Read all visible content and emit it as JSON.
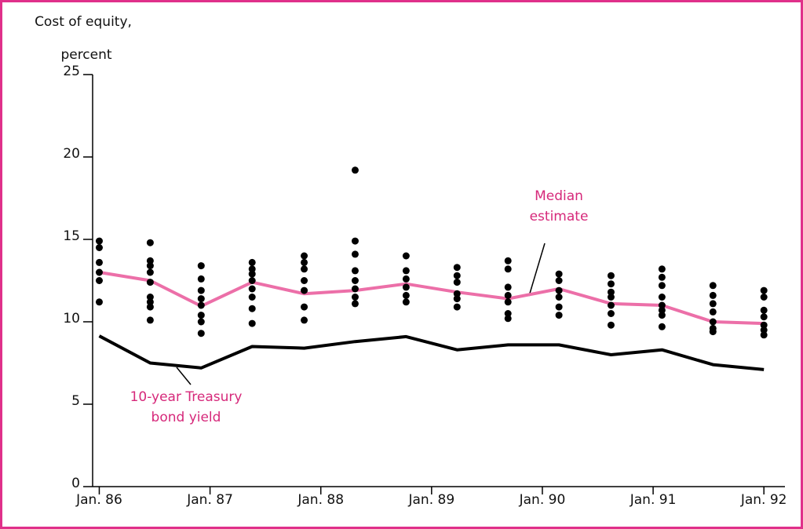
{
  "chart_data": {
    "type": "line",
    "ylabel": [
      "Cost of equity,",
      "percent"
    ],
    "xlim": [
      1985.94,
      1992.19
    ],
    "ylim": [
      0,
      25
    ],
    "xticks": [
      {
        "value": 1986,
        "label": "Jan. 86"
      },
      {
        "value": 1987,
        "label": "Jan. 87"
      },
      {
        "value": 1988,
        "label": "Jan. 88"
      },
      {
        "value": 1989,
        "label": "Jan. 89"
      },
      {
        "value": 1990,
        "label": "Jan. 90"
      },
      {
        "value": 1991,
        "label": "Jan. 91"
      },
      {
        "value": 1992,
        "label": "Jan. 92"
      }
    ],
    "yticks": [
      0,
      5,
      10,
      15,
      20,
      25
    ],
    "x": [
      1986,
      1986.46,
      1986.92,
      1987.38,
      1987.85,
      1988.31,
      1988.77,
      1989.23,
      1989.69,
      1990.15,
      1990.62,
      1991.08,
      1991.54,
      1992
    ],
    "series": [
      {
        "color": "#ec6fa8",
        "values": [
          13.0,
          12.5,
          10.95,
          12.4,
          11.7,
          11.9,
          12.3,
          11.8,
          11.4,
          12.0,
          11.1,
          11.0,
          10.0,
          9.9
        ]
      },
      {
        "color": "#000000",
        "values": [
          9.14,
          7.5,
          7.2,
          8.5,
          8.4,
          8.8,
          9.1,
          8.3,
          8.6,
          8.6,
          8.0,
          8.3,
          7.4,
          7.1
        ]
      }
    ],
    "estimates": {
      "color": "#000000",
      "values": [
        [
          14.9,
          14.5,
          13.6,
          13.0,
          12.5,
          11.2
        ],
        [
          14.8,
          13.7,
          13.4,
          13.0,
          12.4,
          11.5,
          11.2,
          10.9,
          10.1
        ],
        [
          13.4,
          12.6,
          11.9,
          11.4,
          11.0,
          10.4,
          10.0,
          9.3
        ],
        [
          13.6,
          13.2,
          12.9,
          12.5,
          12.0,
          11.5,
          10.8,
          9.9
        ],
        [
          14.0,
          13.6,
          13.2,
          12.5,
          11.9,
          10.9,
          10.1
        ],
        [
          19.2,
          14.9,
          14.1,
          13.1,
          12.5,
          12.0,
          11.5,
          11.1
        ],
        [
          14.0,
          13.1,
          12.6,
          12.1,
          11.6,
          11.2
        ],
        [
          13.3,
          12.8,
          12.4,
          11.7,
          11.4,
          10.9
        ],
        [
          13.7,
          13.2,
          12.1,
          11.6,
          11.2,
          10.5,
          10.2
        ],
        [
          12.9,
          12.5,
          11.9,
          11.5,
          10.9,
          10.4
        ],
        [
          12.8,
          12.3,
          11.8,
          11.5,
          11.0,
          10.5,
          9.8
        ],
        [
          13.2,
          12.7,
          12.2,
          11.5,
          11.0,
          10.7,
          10.4,
          9.7
        ],
        [
          12.2,
          11.6,
          11.1,
          10.6,
          10.0,
          9.6,
          9.4
        ],
        [
          11.9,
          11.5,
          10.7,
          10.3,
          9.8,
          9.5,
          9.2
        ]
      ]
    },
    "annotations": [
      {
        "color": "#d6287a",
        "text": [
          "Median",
          "estimate"
        ]
      },
      {
        "color": "#d6287a",
        "text": [
          "10-year Treasury",
          "bond yield"
        ]
      }
    ]
  }
}
